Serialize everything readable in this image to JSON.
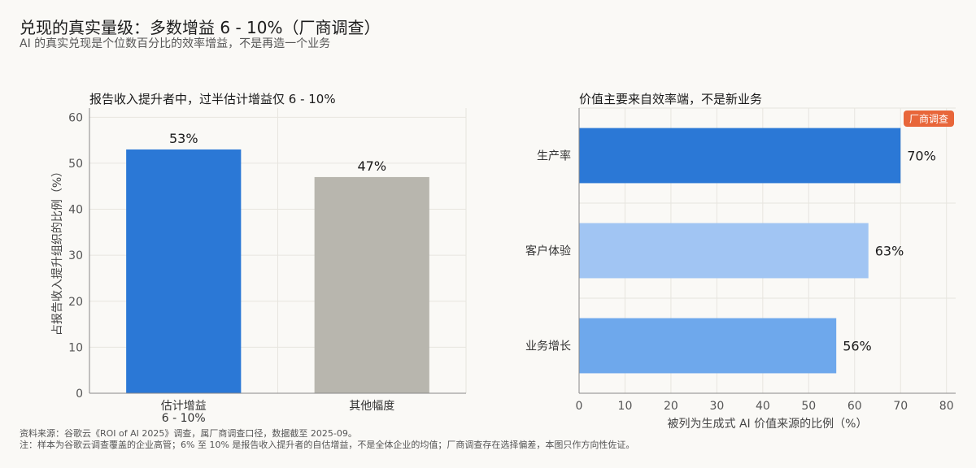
{
  "title": "兑现的真实量级：多数增益 6 - 10%（厂商调查）",
  "subtitle": "AI 的真实兑现是个位数百分比的效率增益，不是再造一个业务",
  "footer": {
    "source": "资料来源：谷歌云《ROI of AI 2025》调查，属厂商调查口径，数据截至 2025-09。",
    "note": "注：样本为谷歌云调查覆盖的企业高管；6% 至 10% 是报告收入提升者的自估增益，不是全体企业的均值；厂商调查存在选择偏差，本图只作方向性佐证。"
  },
  "chart_data": [
    {
      "type": "bar",
      "title": "报告收入提升者中，过半估计增益仅 6 - 10%",
      "categories": [
        [
          "估计增益",
          "6 - 10%"
        ],
        [
          "其他幅度"
        ]
      ],
      "values": [
        53,
        47
      ],
      "labels": [
        "53%",
        "47%"
      ],
      "colors": [
        "#2b78d6",
        "#b8b6ae"
      ],
      "ylabel": "占报告收入提升组织的比例（%）",
      "xlabel": "",
      "ylim": [
        0,
        62
      ],
      "yticks": [
        0,
        10,
        20,
        30,
        40,
        50,
        60
      ],
      "grid": true
    },
    {
      "type": "bar",
      "orientation": "horizontal",
      "title": "价值主要来自效率端，不是新业务",
      "categories": [
        "生产率",
        "客户体验",
        "业务增长"
      ],
      "values": [
        70,
        63,
        56
      ],
      "labels": [
        "70%",
        "63%",
        "56%"
      ],
      "colors": [
        "#2b78d6",
        "#a1c5f3",
        "#6ea8ec"
      ],
      "xlabel": "被列为生成式 AI 价值来源的比例（%）",
      "ylabel": "",
      "xlim": [
        0,
        82
      ],
      "xticks": [
        0,
        10,
        20,
        30,
        40,
        50,
        60,
        70,
        80
      ],
      "badge": "厂商调查",
      "badge_color": "#e8663a",
      "grid": true
    }
  ]
}
